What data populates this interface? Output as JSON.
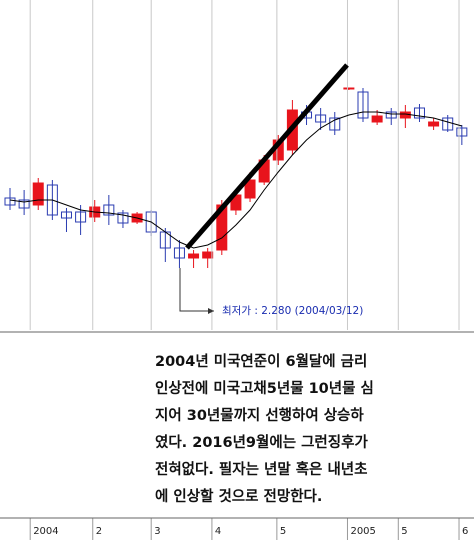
{
  "chart_data": {
    "type": "candlestick",
    "categories": [
      null,
      null,
      null,
      null,
      null,
      null,
      null,
      null,
      null,
      null,
      null,
      null,
      null,
      null,
      null,
      null,
      null,
      null,
      null,
      null,
      null,
      null,
      null,
      null,
      null,
      null,
      null,
      null,
      null,
      null,
      null,
      null,
      null
    ],
    "open": [
      2.7,
      2.688,
      2.658,
      2.778,
      2.616,
      2.616,
      2.586,
      2.658,
      2.61,
      2.556,
      2.616,
      2.496,
      2.4,
      2.34,
      2.34,
      2.388,
      2.628,
      2.7,
      2.796,
      2.928,
      2.988,
      3.216,
      3.198,
      3.18,
      3.354,
      3.336,
      3.156,
      3.216,
      3.18,
      3.24,
      3.132,
      3.18,
      3.12
    ],
    "high": [
      2.76,
      2.748,
      2.82,
      2.808,
      2.64,
      2.658,
      2.688,
      2.718,
      2.628,
      2.616,
      2.628,
      2.52,
      2.448,
      2.388,
      2.4,
      2.688,
      2.748,
      2.856,
      2.958,
      3.078,
      3.288,
      3.258,
      3.24,
      3.216,
      3.36,
      3.36,
      3.228,
      3.24,
      3.258,
      3.264,
      3.18,
      3.198,
      3.138
    ],
    "low": [
      2.628,
      2.598,
      2.628,
      2.568,
      2.496,
      2.478,
      2.556,
      2.538,
      2.52,
      2.544,
      2.472,
      2.316,
      2.28,
      2.28,
      2.28,
      2.358,
      2.598,
      2.676,
      2.778,
      2.898,
      2.958,
      3.138,
      3.108,
      3.078,
      3.348,
      3.156,
      3.138,
      3.138,
      3.12,
      3.156,
      3.108,
      3.096,
      3.018
    ],
    "close": [
      2.658,
      2.64,
      2.79,
      2.598,
      2.58,
      2.556,
      2.646,
      2.598,
      2.55,
      2.604,
      2.496,
      2.4,
      2.34,
      2.364,
      2.376,
      2.658,
      2.718,
      2.808,
      2.928,
      3.048,
      3.228,
      3.18,
      3.156,
      3.108,
      3.36,
      3.18,
      3.192,
      3.18,
      3.216,
      3.18,
      3.156,
      3.108,
      3.072
    ],
    "up_color": "#e8141c",
    "down_color": "#2a3bb0",
    "moving_average": {
      "color": "#000000",
      "values": [
        2.688,
        2.676,
        2.688,
        2.688,
        2.658,
        2.628,
        2.616,
        2.61,
        2.598,
        2.58,
        2.556,
        2.496,
        2.436,
        2.4,
        2.418,
        2.46,
        2.538,
        2.628,
        2.748,
        2.856,
        2.958,
        3.048,
        3.12,
        3.168,
        3.198,
        3.216,
        3.216,
        3.204,
        3.204,
        3.192,
        3.18,
        3.156,
        3.132
      ]
    },
    "ylim": [
      1.908,
      3.888
    ],
    "xticks": [
      {
        "value": 1.43,
        "label": "2004"
      },
      {
        "value": 5.86,
        "label": "2"
      },
      {
        "value": 10,
        "label": "3"
      },
      {
        "value": 14.3,
        "label": "4"
      },
      {
        "value": 18.9,
        "label": "5"
      },
      {
        "value": 23.9,
        "label": "2005"
      },
      {
        "value": 27.5,
        "label": "5"
      },
      {
        "value": 31.8,
        "label": "6"
      }
    ],
    "grid": true,
    "annotation": "최저가 : 2.280 (2004/03/12)",
    "note_lines": [
      "2004년 미국연준이 6월달에 금리",
      "인상전에 미국고채5년물 10년물 심",
      "지어 30년물까지 선행하여 상승하",
      "였다. 2016년9월에는 그런징후가",
      "전혀없다. 필자는 년말 혹은 내년초",
      "에 인상할 것으로 전망한다."
    ]
  }
}
